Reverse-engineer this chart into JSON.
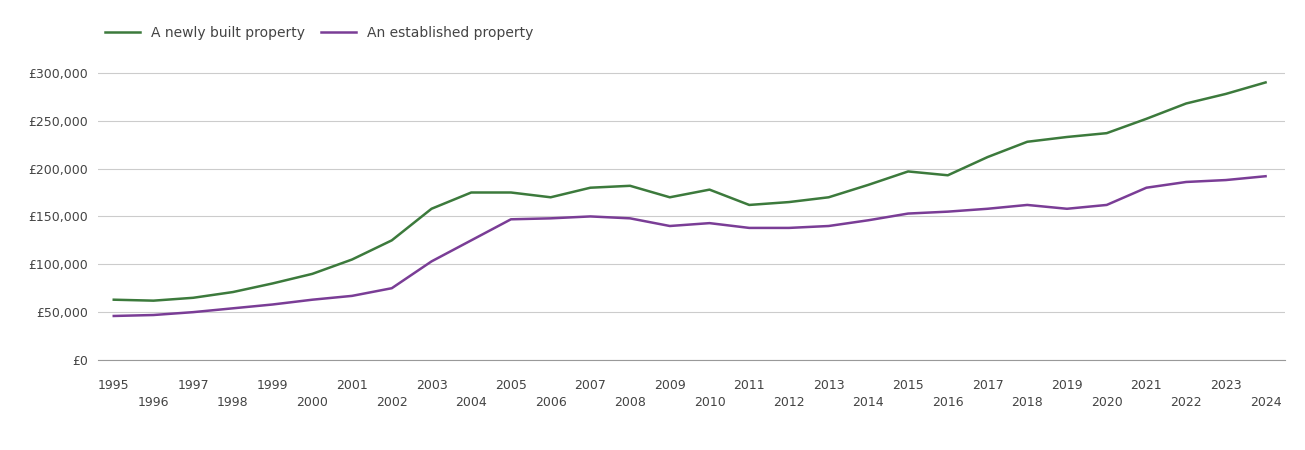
{
  "newly_built": {
    "years": [
      1995,
      1996,
      1997,
      1998,
      1999,
      2000,
      2001,
      2002,
      2003,
      2004,
      2005,
      2006,
      2007,
      2008,
      2009,
      2010,
      2011,
      2012,
      2013,
      2014,
      2015,
      2016,
      2017,
      2018,
      2019,
      2020,
      2021,
      2022,
      2023,
      2024
    ],
    "values": [
      63000,
      62000,
      65000,
      71000,
      80000,
      90000,
      105000,
      125000,
      158000,
      175000,
      175000,
      170000,
      180000,
      182000,
      170000,
      178000,
      162000,
      165000,
      170000,
      183000,
      197000,
      193000,
      212000,
      228000,
      233000,
      237000,
      252000,
      268000,
      278000,
      290000
    ]
  },
  "established": {
    "years": [
      1995,
      1996,
      1997,
      1998,
      1999,
      2000,
      2001,
      2002,
      2003,
      2004,
      2005,
      2006,
      2007,
      2008,
      2009,
      2010,
      2011,
      2012,
      2013,
      2014,
      2015,
      2016,
      2017,
      2018,
      2019,
      2020,
      2021,
      2022,
      2023,
      2024
    ],
    "values": [
      46000,
      47000,
      50000,
      54000,
      58000,
      63000,
      67000,
      75000,
      103000,
      125000,
      147000,
      148000,
      150000,
      148000,
      140000,
      143000,
      138000,
      138000,
      140000,
      146000,
      153000,
      155000,
      158000,
      162000,
      158000,
      162000,
      180000,
      186000,
      188000,
      192000
    ]
  },
  "newly_color": "#3c7a3c",
  "established_color": "#7a3d96",
  "line_width": 1.8,
  "yticks": [
    0,
    50000,
    100000,
    150000,
    200000,
    250000,
    300000
  ],
  "ylim": [
    0,
    315000
  ],
  "xlim": [
    1994.6,
    2024.5
  ],
  "bg_color": "#ffffff",
  "grid_color": "#cccccc",
  "legend_newly": "A newly built property",
  "legend_established": "An established property",
  "tick_label_color": "#444444",
  "font_size_ticks": 9,
  "font_size_legend": 10
}
